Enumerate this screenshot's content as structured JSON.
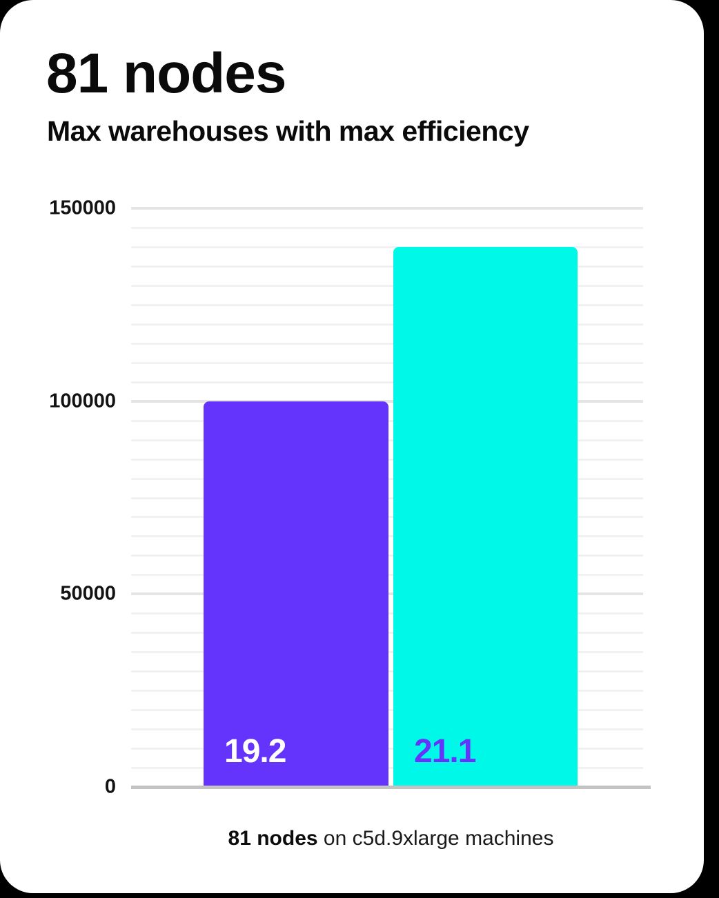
{
  "page": {
    "title": "81 nodes",
    "subtitle": "Max warehouses with max efficiency"
  },
  "chart_data": {
    "type": "bar",
    "title": "81 nodes",
    "subtitle": "Max warehouses with max efficiency",
    "categories": [
      "19.2",
      "21.1"
    ],
    "values": [
      100000,
      140000
    ],
    "bar_inner_labels": [
      "19.2",
      "21.1"
    ],
    "caption_bold": "81 nodes",
    "caption_rest": " on c5d.9xlarge machines",
    "xlabel": "81 nodes on c5d.9xlarge machines",
    "ylabel": "",
    "ylim": [
      0,
      150000
    ],
    "y_ticks": [
      0,
      50000,
      100000,
      150000
    ],
    "minor_grid_step": 5000,
    "grid": true,
    "legend_position": "none",
    "colors": {
      "bars": [
        "#6433FC",
        "#00F8E8"
      ],
      "bar_label_text": [
        "#FFFFFF",
        "#6633FC"
      ],
      "axis_line": "#C3C3C3",
      "grid_major": "#E5E5E5",
      "grid_minor": "#F1F1F1",
      "heading_text": "#0A0A0A",
      "tick_text": "#131313",
      "card_background": "#FFFFFF",
      "page_background": "#000000"
    }
  }
}
